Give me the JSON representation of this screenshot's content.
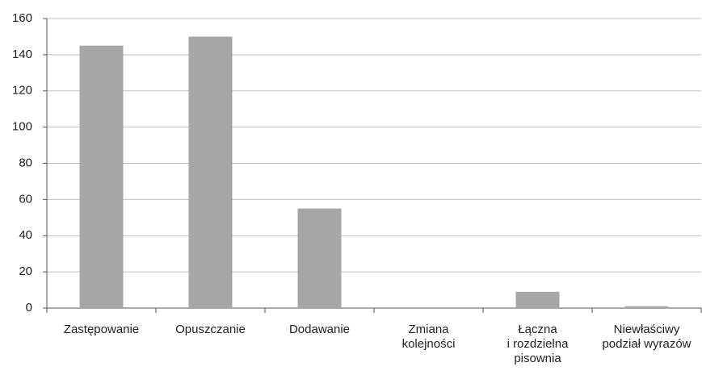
{
  "chart_data": {
    "type": "bar",
    "categories": [
      "Zastępowanie",
      "Opuszczanie",
      "Dodawanie",
      "Zmiana\nkolejności",
      "Łączna\ni rozdzielna\npisownia",
      "Niewłaściwy\npodział wyrazów"
    ],
    "values": [
      145,
      150,
      55,
      0,
      9,
      1
    ],
    "color": "#a6a6a6",
    "ylim": [
      0,
      160
    ],
    "yticks": [
      0,
      20,
      40,
      60,
      80,
      100,
      120,
      140,
      160
    ],
    "grid": true
  }
}
